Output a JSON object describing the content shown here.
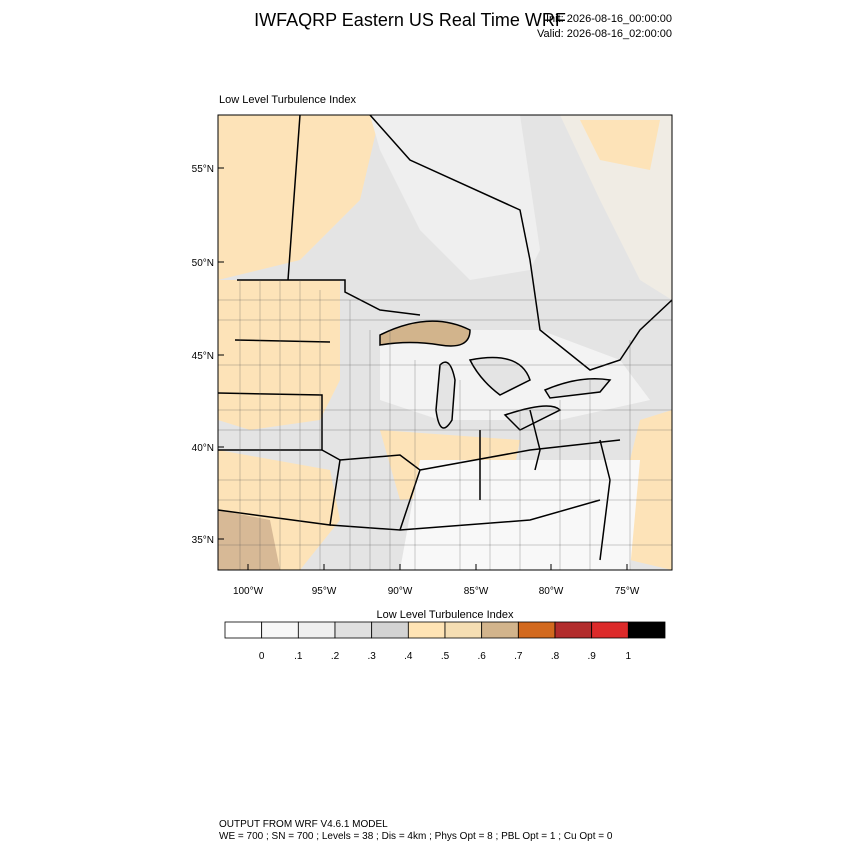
{
  "header": {
    "title": "IWFAQRP Eastern US Real Time WRF",
    "init": "Init: 2026-08-16_00:00:00",
    "valid": "Valid: 2026-08-16_02:00:00"
  },
  "map": {
    "subtitle": "Low Level Turbulence Index",
    "lat_labels": [
      "55°N",
      "50°N",
      "45°N",
      "40°N",
      "35°N"
    ],
    "lon_labels": [
      "100°W",
      "95°W",
      "90°W",
      "85°W",
      "80°W",
      "75°W"
    ]
  },
  "colorbar": {
    "title": "Low Level Turbulence Index",
    "labels": [
      "0",
      ".1",
      ".2",
      ".3",
      ".4",
      ".5",
      ".6",
      ".7",
      ".8",
      ".9",
      "1"
    ],
    "colors": [
      "#ffffff",
      "#f7f7f7",
      "#efefef",
      "#e0e0e0",
      "#d3d3d3",
      "#ffe4b5",
      "#f5deb3",
      "#d2b48c",
      "#d2691e",
      "#b22c2c",
      "#dc2a2a",
      "#000000"
    ]
  },
  "footer": {
    "line1": "OUTPUT FROM WRF V4.6.1 MODEL",
    "line2": "WE = 700 ; SN = 700 ; Levels = 38 ; Dis = 4km ; Phys Opt = 8 ; PBL Opt = 1 ; Cu Opt = 0"
  }
}
